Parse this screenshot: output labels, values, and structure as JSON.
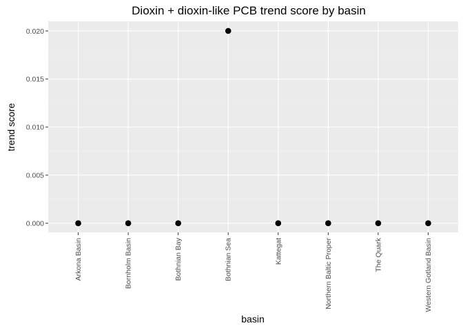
{
  "chart_data": {
    "type": "scatter",
    "title": "Dioxin + dioxin-like PCB trend score by basin",
    "xlabel": "basin",
    "ylabel": "trend score",
    "categories": [
      "Arkona Basin",
      "Bornholm Basin",
      "Bothnian Bay",
      "Bothnian Sea",
      "Kattegat",
      "Northern Baltic Proper",
      "The Quark",
      "Western Gotland Basin"
    ],
    "values": [
      0.0,
      0.0,
      0.0,
      0.02,
      0.0,
      0.0,
      0.0,
      0.0
    ],
    "y_ticks": [
      "0.000",
      "0.005",
      "0.010",
      "0.015",
      "0.020"
    ],
    "ylim": [
      -0.00095,
      0.021
    ],
    "grid": true,
    "legend": "none",
    "colors": {
      "panel": "#ebebeb",
      "grid_major": "#ffffff",
      "grid_minor": "#f5f5f5",
      "point": "#000000",
      "tick": "#333333"
    }
  }
}
